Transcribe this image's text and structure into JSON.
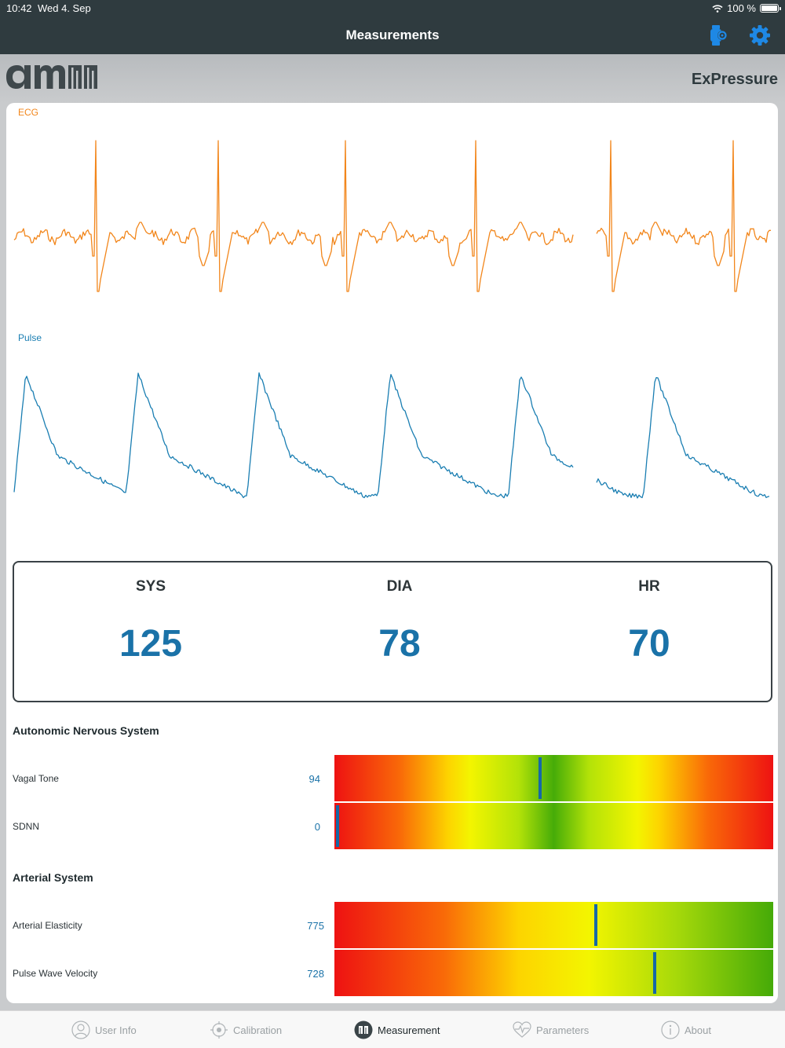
{
  "status_bar": {
    "time": "10:42",
    "date": "Wed 4. Sep",
    "battery": "100 %"
  },
  "nav": {
    "title": "Measurements",
    "device_icon": "watch-settings-icon",
    "settings_icon": "gear-icon"
  },
  "brand": {
    "logo_text": "ams",
    "app_name": "ExPressure"
  },
  "waveforms": {
    "ecg_label": "ECG",
    "pulse_label": "Pulse",
    "ecg_color": "#f2861b",
    "pulse_color": "#1a7eb2"
  },
  "vitals": {
    "sys_label": "SYS",
    "sys_value": "125",
    "dia_label": "DIA",
    "dia_value": "78",
    "hr_label": "HR",
    "hr_value": "70",
    "value_color": "#1a72a8"
  },
  "ans": {
    "title": "Autonomic Nervous System",
    "rows": [
      {
        "label": "Vagal Tone",
        "value": "94",
        "marker_fraction": 0.466
      },
      {
        "label": "SDNN",
        "value": "0",
        "marker_fraction": 0.003
      }
    ]
  },
  "arterial": {
    "title": "Arterial System",
    "rows": [
      {
        "label": "Arterial Elasticity",
        "value": "775",
        "marker_fraction": 0.592
      },
      {
        "label": "Pulse Wave Velocity",
        "value": "728",
        "marker_fraction": 0.726
      }
    ]
  },
  "tabs": [
    {
      "label": "User Info",
      "icon": "user-icon",
      "active": false
    },
    {
      "label": "Calibration",
      "icon": "calibration-icon",
      "active": false
    },
    {
      "label": "Measurement",
      "icon": "ams-logo-icon",
      "active": true
    },
    {
      "label": "Parameters",
      "icon": "heart-pulse-icon",
      "active": false
    },
    {
      "label": "About",
      "icon": "info-icon",
      "active": false
    }
  ]
}
